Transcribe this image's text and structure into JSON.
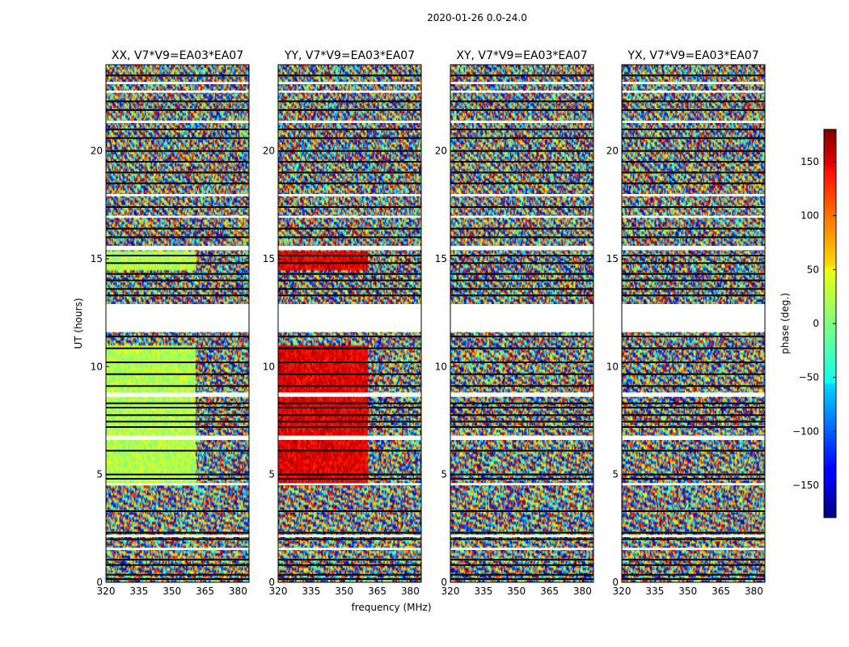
{
  "figure": {
    "suptitle": "2020-01-26 0.0-24.0"
  },
  "chart_data": {
    "type": "heatmap",
    "panels": [
      {
        "title": "XX, V7*V9=EA03*EA07",
        "pol": "XX"
      },
      {
        "title": "YY, V7*V9=EA03*EA07",
        "pol": "YY"
      },
      {
        "title": "XY, V7*V9=EA03*EA07",
        "pol": "XY"
      },
      {
        "title": "YX, V7*V9=EA03*EA07",
        "pol": "YX"
      }
    ],
    "xlabel": "frequency (MHz)",
    "ylabel": "UT (hours)",
    "xlim": [
      320,
      385
    ],
    "ylim": [
      0,
      24
    ],
    "xticks": [
      320,
      335,
      350,
      365,
      380
    ],
    "yticks": [
      0,
      5,
      10,
      15,
      20
    ],
    "colorbar": {
      "label": "phase (deg.)",
      "range": [
        -180,
        180
      ],
      "ticks": [
        150,
        100,
        50,
        0,
        -50,
        -100,
        -150
      ],
      "tick_labels": [
        "150",
        "100",
        "50",
        "0",
        "−50",
        "−100",
        "−150"
      ],
      "colormap": "jet"
    },
    "data_gaps_hours": [
      [
        11.6,
        12.9
      ],
      [
        8.6,
        8.8
      ],
      [
        6.6,
        6.8
      ],
      [
        4.5,
        4.6
      ],
      [
        2.1,
        2.2
      ],
      [
        1.5,
        1.6
      ],
      [
        15.4,
        15.6
      ],
      [
        16.9,
        17.0
      ],
      [
        17.9,
        18.0
      ],
      [
        21.3,
        21.4
      ],
      [
        22.7,
        22.8
      ],
      [
        23.1,
        23.2
      ]
    ],
    "flagged_rows_hours": [
      0.15,
      0.35,
      0.8,
      1.05,
      2.0,
      2.3,
      3.3,
      4.8,
      5.0,
      6.1,
      7.2,
      7.45,
      7.75,
      8.1,
      8.3,
      9.1,
      9.65,
      10.2,
      10.85,
      11.4,
      13.3,
      13.6,
      14.0,
      14.3,
      14.8,
      15.15,
      16.0,
      16.4,
      17.4,
      18.5,
      19.0,
      19.5,
      20.0,
      20.6,
      21.0,
      21.9,
      22.3,
      23.5
    ]
  }
}
